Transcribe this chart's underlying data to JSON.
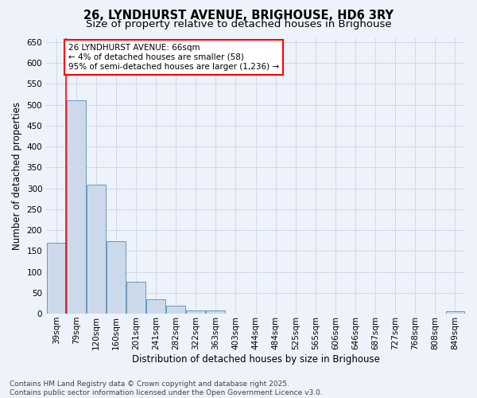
{
  "title": "26, LYNDHURST AVENUE, BRIGHOUSE, HD6 3RY",
  "subtitle": "Size of property relative to detached houses in Brighouse",
  "xlabel": "Distribution of detached houses by size in Brighouse",
  "ylabel": "Number of detached properties",
  "bar_values": [
    170,
    510,
    308,
    174,
    77,
    34,
    20,
    7,
    7,
    0,
    0,
    0,
    0,
    0,
    0,
    0,
    0,
    0,
    0,
    0,
    5
  ],
  "bar_labels": [
    "39sqm",
    "79sqm",
    "120sqm",
    "160sqm",
    "201sqm",
    "241sqm",
    "282sqm",
    "322sqm",
    "363sqm",
    "403sqm",
    "444sqm",
    "484sqm",
    "525sqm",
    "565sqm",
    "606sqm",
    "646sqm",
    "687sqm",
    "727sqm",
    "768sqm",
    "808sqm",
    "849sqm"
  ],
  "bar_color": "#ccd9ea",
  "bar_edge_color": "#6699bb",
  "grid_color": "#d0d8e8",
  "background_color": "#eef2fa",
  "annotation_text": "26 LYNDHURST AVENUE: 66sqm\n← 4% of detached houses are smaller (58)\n95% of semi-detached houses are larger (1,236) →",
  "red_line_x": 0.5,
  "ylim": [
    0,
    660
  ],
  "footer": "Contains HM Land Registry data © Crown copyright and database right 2025.\nContains public sector information licensed under the Open Government Licence v3.0.",
  "title_fontsize": 10.5,
  "subtitle_fontsize": 9.5,
  "axis_label_fontsize": 8.5,
  "tick_fontsize": 7.5,
  "annotation_fontsize": 7.5,
  "footer_fontsize": 6.5
}
